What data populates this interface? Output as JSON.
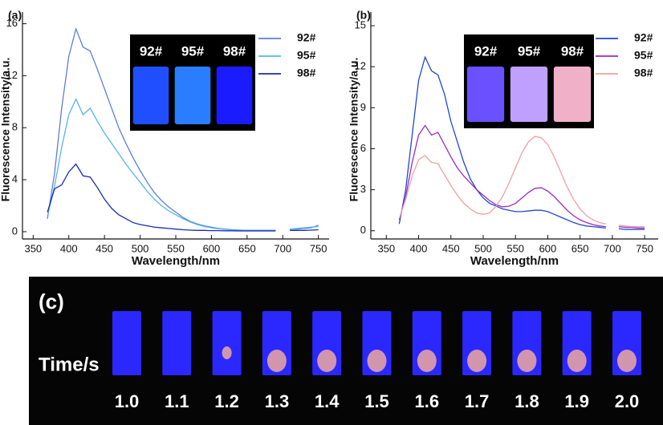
{
  "chart_data": [
    {
      "type": "line",
      "panel_label": "(a)",
      "x_label": "Wavelength/nm",
      "y_label": "Fluorescence Intensity/a.u.",
      "x": [
        370,
        380,
        390,
        400,
        410,
        420,
        430,
        440,
        450,
        460,
        470,
        480,
        490,
        500,
        510,
        520,
        530,
        540,
        550,
        560,
        570,
        580,
        590,
        600,
        610,
        620,
        630,
        640,
        650,
        660,
        670,
        680,
        690,
        700,
        710,
        720,
        730,
        740,
        750
      ],
      "series": [
        {
          "name": "92#",
          "color": "#5b7fd8",
          "values": [
            1.0,
            4.5,
            9.5,
            13.5,
            15.6,
            14.2,
            13.9,
            12.5,
            11.0,
            9.5,
            8.0,
            6.8,
            5.7,
            4.7,
            3.8,
            3.0,
            2.4,
            1.9,
            1.5,
            1.1,
            0.8,
            0.6,
            0.45,
            0.35,
            0.25,
            0.2,
            0.15,
            0.12,
            0.1,
            0.1,
            0.1,
            0.1,
            0.1,
            null,
            0.2,
            0.2,
            0.25,
            0.3,
            0.5
          ]
        },
        {
          "name": "95#",
          "color": "#55b4ea",
          "values": [
            1.2,
            3.5,
            6.5,
            9.0,
            10.2,
            9.0,
            9.5,
            8.5,
            7.6,
            6.8,
            6.0,
            5.2,
            4.5,
            3.8,
            3.1,
            2.5,
            2.0,
            1.6,
            1.3,
            1.0,
            0.75,
            0.55,
            0.4,
            0.3,
            0.22,
            0.18,
            0.14,
            0.12,
            0.1,
            0.1,
            0.1,
            0.1,
            0.1,
            null,
            0.2,
            0.25,
            0.3,
            0.35,
            0.4
          ]
        },
        {
          "name": "98#",
          "color": "#1a2cb0",
          "values": [
            1.5,
            3.3,
            3.6,
            4.6,
            5.2,
            4.3,
            4.2,
            3.4,
            2.5,
            1.8,
            1.3,
            1.0,
            0.7,
            0.55,
            0.45,
            0.35,
            0.3,
            0.25,
            0.2,
            0.15,
            0.12,
            0.1,
            0.1,
            0.08,
            0.08,
            0.07,
            0.07,
            0.06,
            0.06,
            0.06,
            0.06,
            0.06,
            0.06,
            null,
            0.1,
            0.1,
            0.1,
            0.12,
            0.15
          ]
        }
      ],
      "xlim": [
        335,
        765
      ],
      "ylim": [
        -0.56,
        16.9
      ],
      "xticks": [
        350,
        400,
        450,
        500,
        550,
        600,
        650,
        700,
        750
      ],
      "yticks": [
        0,
        4,
        8,
        12,
        16
      ],
      "legend": "upper right",
      "inset_labels": [
        "92#",
        "95#",
        "98#"
      ],
      "inset_colors": [
        "#1f4fff",
        "#2a7dff",
        "#1a1cff"
      ]
    },
    {
      "type": "line",
      "panel_label": "(b)",
      "x_label": "Wavelength/nm",
      "y_label": "Fluorescence Intensity/a.u.",
      "x": [
        370,
        380,
        390,
        400,
        410,
        420,
        430,
        440,
        450,
        460,
        470,
        480,
        490,
        500,
        510,
        520,
        530,
        540,
        550,
        560,
        570,
        580,
        590,
        600,
        610,
        620,
        630,
        640,
        650,
        660,
        670,
        680,
        690,
        700,
        710,
        720,
        730,
        740,
        750
      ],
      "series": [
        {
          "name": "92#",
          "color": "#2046d8",
          "values": [
            0.5,
            3,
            7,
            11,
            12.7,
            11.7,
            11.4,
            10,
            8,
            6.5,
            5,
            3.8,
            3.0,
            2.4,
            2.0,
            1.8,
            1.6,
            1.5,
            1.4,
            1.4,
            1.45,
            1.5,
            1.5,
            1.4,
            1.2,
            1.0,
            0.8,
            0.6,
            0.45,
            0.35,
            0.3,
            0.25,
            0.2,
            null,
            0.15,
            0.1,
            0.1,
            0.1,
            0.1
          ]
        },
        {
          "name": "95#",
          "color": "#9a2bc0",
          "values": [
            0.8,
            2.5,
            5,
            7,
            7.7,
            7.0,
            7.2,
            6.3,
            5.4,
            4.6,
            4.0,
            3.5,
            3.0,
            2.6,
            2.2,
            1.9,
            1.75,
            1.8,
            2.0,
            2.4,
            2.8,
            3.1,
            3.15,
            2.9,
            2.5,
            2.0,
            1.5,
            1.1,
            0.8,
            0.6,
            0.45,
            0.35,
            0.3,
            null,
            0.3,
            0.25,
            0.25,
            0.2,
            0.2
          ]
        },
        {
          "name": "98#",
          "color": "#f0a0a0",
          "values": [
            0.9,
            2.3,
            4.0,
            5.2,
            5.5,
            5.0,
            4.9,
            4.1,
            3.3,
            2.6,
            2.0,
            1.6,
            1.3,
            1.2,
            1.3,
            1.8,
            2.5,
            3.5,
            4.6,
            5.7,
            6.5,
            6.9,
            6.8,
            6.3,
            5.4,
            4.3,
            3.2,
            2.3,
            1.6,
            1.1,
            0.8,
            0.6,
            0.5,
            null,
            0.4,
            0.35,
            0.3,
            0.3,
            0.3
          ]
        }
      ],
      "xlim": [
        326,
        771
      ],
      "ylim": [
        -0.6,
        16.0
      ],
      "xticks": [
        350,
        400,
        450,
        500,
        550,
        600,
        650,
        700,
        750
      ],
      "yticks": [
        0,
        3,
        6,
        9,
        12,
        15
      ],
      "legend": "upper right",
      "inset_labels": [
        "92#",
        "95#",
        "98#"
      ],
      "inset_colors": [
        "#6a50ff",
        "#c0a0ff",
        "#f0b0c8"
      ]
    }
  ],
  "photo_panel": {
    "label": "(c)",
    "caption": "Time/s",
    "times": [
      "1.0",
      "1.1",
      "1.2",
      "1.3",
      "1.4",
      "1.5",
      "1.6",
      "1.7",
      "1.8",
      "1.9",
      "2.0"
    ]
  }
}
